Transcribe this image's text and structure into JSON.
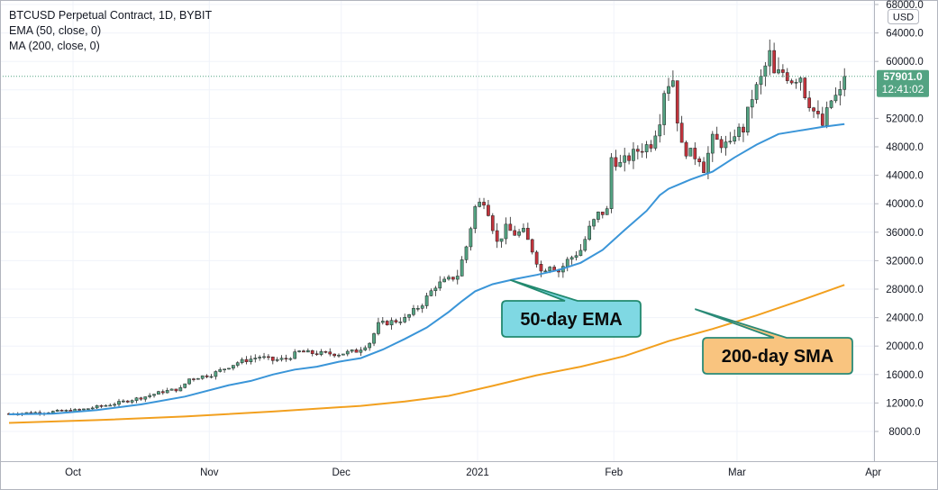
{
  "legend": {
    "line1": "BTCUSD Perpetual Contract, 1D, BYBIT",
    "line2": "EMA (50, close, 0)",
    "line3": "MA (200, close, 0)"
  },
  "currency": "USD",
  "last_price": {
    "value": 57901,
    "label": "57901.0",
    "countdown": "12:41:02"
  },
  "colors": {
    "up": "#53a382",
    "down": "#c2333c",
    "ema": "#3a95d8",
    "sma": "#f2a01f",
    "callout_ema_fill": "#7fd8e3",
    "callout_ema_stroke": "#22896f",
    "callout_sma_fill": "#f9c47f",
    "callout_sma_stroke": "#2a8a77",
    "price_tag": "#53a382"
  },
  "annotations": {
    "ema": {
      "text": "50-day EMA",
      "anchor_day": 114,
      "anchor_value": 29300
    },
    "sma": {
      "text": "200-day SMA",
      "anchor_day": 156,
      "anchor_value": 25200
    }
  },
  "chart_data": {
    "type": "candlestick",
    "title": "BTCUSD Perpetual Contract, 1D, BYBIT",
    "start_date": "2020-09-23",
    "x_tick_labels": [
      {
        "day": 8,
        "label": "Oct"
      },
      {
        "day": 39,
        "label": "Nov"
      },
      {
        "day": 69,
        "label": "Dec"
      },
      {
        "day": 100,
        "label": "2021"
      },
      {
        "day": 131,
        "label": "Feb"
      },
      {
        "day": 159,
        "label": "Mar"
      },
      {
        "day": 190,
        "label": "Apr"
      }
    ],
    "ylim": [
      4000,
      68000
    ],
    "y_ticks": [
      8000,
      12000,
      16000,
      20000,
      24000,
      28000,
      32000,
      36000,
      40000,
      44000,
      48000,
      52000,
      56000,
      60000,
      64000,
      68000
    ],
    "y_tick_labels": [
      "8000.0",
      "12000.0",
      "16000.0",
      "20000.0",
      "24000.0",
      "28000.0",
      "32000.0",
      "36000.0",
      "40000.0",
      "44000.0",
      "48000.0",
      "52000.0",
      "56000.0",
      "60000.0",
      "64000.0",
      "68000.0"
    ],
    "close_series_anchors": [
      [
        0,
        10500
      ],
      [
        8,
        10700
      ],
      [
        16,
        11000
      ],
      [
        24,
        11900
      ],
      [
        31,
        12900
      ],
      [
        35,
        13600
      ],
      [
        39,
        14000
      ],
      [
        41,
        15400
      ],
      [
        46,
        16000
      ],
      [
        52,
        17700
      ],
      [
        57,
        18500
      ],
      [
        60,
        18000
      ],
      [
        63,
        18200
      ],
      [
        66,
        19200
      ],
      [
        69,
        19000
      ],
      [
        75,
        18900
      ],
      [
        79,
        19300
      ],
      [
        82,
        20500
      ],
      [
        84,
        23000
      ],
      [
        86,
        23300
      ],
      [
        90,
        23800
      ],
      [
        94,
        26000
      ],
      [
        97,
        28500
      ],
      [
        100,
        29300
      ],
      [
        102,
        30000
      ],
      [
        103,
        32000
      ],
      [
        104,
        34000
      ],
      [
        106,
        39500
      ],
      [
        108,
        40500
      ],
      [
        109,
        39000
      ],
      [
        111,
        34500
      ],
      [
        113,
        36500
      ],
      [
        115,
        35800
      ],
      [
        117,
        36000
      ],
      [
        119,
        33500
      ],
      [
        121,
        30500
      ],
      [
        123,
        31500
      ],
      [
        125,
        30500
      ],
      [
        127,
        32000
      ],
      [
        130,
        33500
      ],
      [
        132,
        36500
      ],
      [
        134,
        38500
      ],
      [
        136,
        39000
      ],
      [
        137,
        46500
      ],
      [
        139,
        45500
      ],
      [
        143,
        47500
      ],
      [
        146,
        48500
      ],
      [
        148,
        52000
      ],
      [
        149,
        56000
      ],
      [
        150,
        57000
      ],
      [
        151,
        57500
      ],
      [
        152,
        52000
      ],
      [
        153,
        48000
      ],
      [
        155,
        47000
      ],
      [
        157,
        46500
      ],
      [
        158,
        45000
      ],
      [
        160,
        49000
      ],
      [
        162,
        48500
      ],
      [
        164,
        48000
      ],
      [
        165,
        50000
      ],
      [
        167,
        50500
      ],
      [
        169,
        55000
      ],
      [
        171,
        57500
      ],
      [
        173,
        61000
      ],
      [
        174,
        58000
      ],
      [
        176,
        58500
      ],
      [
        178,
        57500
      ],
      [
        180,
        58000
      ],
      [
        181,
        55500
      ],
      [
        183,
        53000
      ],
      [
        185,
        51000
      ],
      [
        187,
        54500
      ],
      [
        189,
        55500
      ],
      [
        190,
        57901
      ]
    ],
    "series": [
      {
        "name": "EMA (50, close, 0)",
        "points": [
          [
            0,
            10400
          ],
          [
            10,
            10500
          ],
          [
            20,
            11000
          ],
          [
            30,
            11800
          ],
          [
            40,
            12900
          ],
          [
            50,
            14500
          ],
          [
            55,
            15100
          ],
          [
            60,
            16000
          ],
          [
            65,
            16700
          ],
          [
            70,
            17100
          ],
          [
            75,
            17800
          ],
          [
            80,
            18300
          ],
          [
            85,
            19500
          ],
          [
            90,
            21000
          ],
          [
            95,
            22600
          ],
          [
            100,
            24800
          ],
          [
            103,
            26300
          ],
          [
            106,
            27700
          ],
          [
            110,
            28700
          ],
          [
            115,
            29400
          ],
          [
            120,
            30000
          ],
          [
            125,
            30700
          ],
          [
            130,
            31700
          ],
          [
            135,
            33500
          ],
          [
            140,
            36300
          ],
          [
            145,
            39000
          ],
          [
            148,
            41200
          ],
          [
            150,
            42100
          ],
          [
            155,
            43400
          ],
          [
            160,
            44500
          ],
          [
            165,
            46500
          ],
          [
            170,
            48300
          ],
          [
            175,
            49800
          ],
          [
            180,
            50300
          ],
          [
            185,
            50800
          ],
          [
            190,
            51200
          ]
        ]
      },
      {
        "name": "MA (200, close, 0)",
        "points": [
          [
            0,
            9200
          ],
          [
            20,
            9600
          ],
          [
            40,
            10100
          ],
          [
            60,
            10800
          ],
          [
            80,
            11600
          ],
          [
            90,
            12200
          ],
          [
            100,
            13000
          ],
          [
            110,
            14400
          ],
          [
            120,
            15900
          ],
          [
            130,
            17100
          ],
          [
            140,
            18600
          ],
          [
            150,
            20700
          ],
          [
            160,
            22400
          ],
          [
            170,
            24300
          ],
          [
            180,
            26400
          ],
          [
            190,
            28600
          ]
        ]
      }
    ]
  }
}
